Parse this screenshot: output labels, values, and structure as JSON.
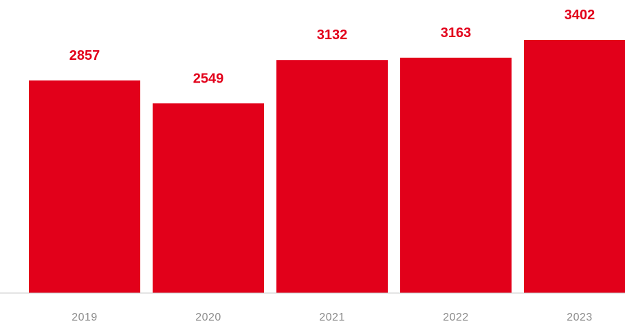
{
  "chart_data": {
    "type": "bar",
    "categories": [
      "2019",
      "2020",
      "2021",
      "2022",
      "2023"
    ],
    "values": [
      2857,
      2549,
      3132,
      3163,
      3402
    ],
    "title": "",
    "xlabel": "",
    "ylabel": "",
    "ylim": [
      0,
      3402
    ],
    "grid": false,
    "legend": "none",
    "value_labels": [
      "2857",
      "2549",
      "3132",
      "3163",
      "3402"
    ]
  },
  "colors": {
    "bar": "#e2001a",
    "value_label": "#e2001a",
    "tick_label": "#8c8c8c",
    "axis_line": "#c8c8c8"
  }
}
